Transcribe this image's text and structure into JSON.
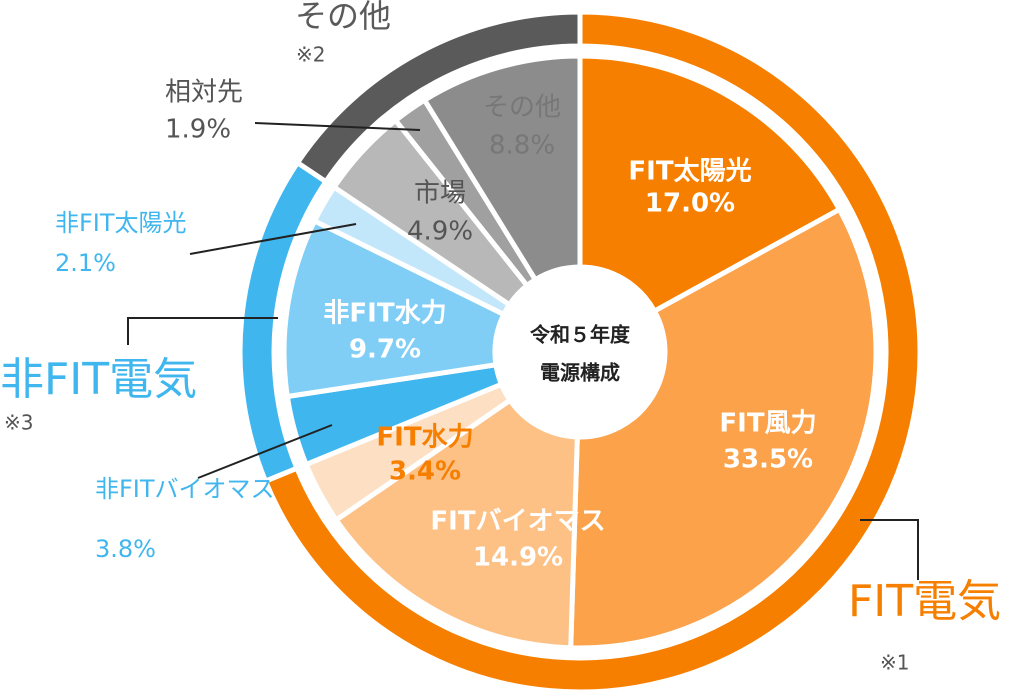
{
  "chart_data": {
    "type": "nested-donut",
    "center_label": [
      "令和５年度",
      "電源構成"
    ],
    "groups": [
      {
        "name": "FIT電気",
        "note": "※1",
        "color": "#f77f00",
        "categories": [
          "FIT太陽光",
          "FIT風力",
          "FITバイオマス",
          "FIT水力"
        ],
        "values": [
          17.0,
          33.5,
          14.9,
          3.4
        ],
        "value_labels": [
          "17.0%",
          "33.5%",
          "14.9%",
          "3.4%"
        ],
        "colors": [
          "#f77f00",
          "#fba24a",
          "#fdc185",
          "#fde0c4"
        ]
      },
      {
        "name": "非FIT電気",
        "note": "※3",
        "color": "#3fb6ee",
        "categories": [
          "非FITバイオマス",
          "非FIT水力",
          "非FIT太陽光"
        ],
        "values": [
          3.8,
          9.7,
          2.1
        ],
        "value_labels": [
          "3.8%",
          "9.7%",
          "2.1%"
        ],
        "colors": [
          "#3fb6ee",
          "#80cef6",
          "#c2e6fa"
        ]
      },
      {
        "name": "その他",
        "note": "※2",
        "color": "#5a5a5a",
        "categories": [
          "市場",
          "相対先",
          "その他"
        ],
        "values": [
          4.9,
          1.9,
          8.8
        ],
        "value_labels": [
          "4.9%",
          "1.9%",
          "8.8%"
        ],
        "colors": [
          "#b8b8b8",
          "#a0a0a0",
          "#8c8c8c"
        ]
      }
    ]
  }
}
